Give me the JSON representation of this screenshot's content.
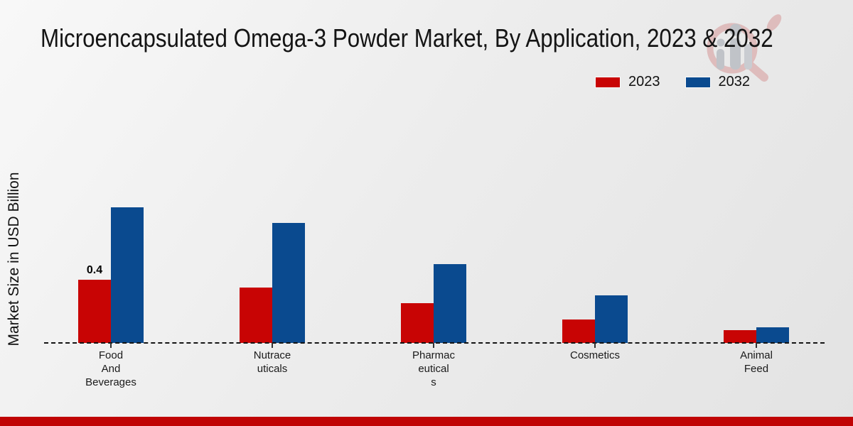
{
  "title": "Microencapsulated Omega-3 Powder Market, By Application, 2023 & 2032",
  "y_axis_label": "Market Size in USD Billion",
  "footer": {
    "color": "#c00404"
  },
  "watermark_icon": "magnifier-bar-chart-logo",
  "legend": {
    "items": [
      {
        "label": "2023",
        "color": "#c80404"
      },
      {
        "label": "2032",
        "color": "#0a4a8f"
      }
    ]
  },
  "chart_data": {
    "type": "bar",
    "title": "Microencapsulated Omega-3 Powder Market, By Application, 2023 & 2032",
    "categories": [
      "Food And Beverages",
      "Nutraceuticals",
      "Pharmaceuticals",
      "Cosmetics",
      "Animal Feed"
    ],
    "category_label_lines": [
      [
        "Food",
        "And",
        "Beverages"
      ],
      [
        "Nutrace",
        "uticals"
      ],
      [
        "Pharmac",
        "eutical",
        "s"
      ],
      [
        "Cosmetics"
      ],
      [
        "Animal",
        "Feed"
      ]
    ],
    "series": [
      {
        "name": "2023",
        "color": "#c80404",
        "values": [
          0.4,
          0.35,
          0.25,
          0.15,
          0.08
        ]
      },
      {
        "name": "2032",
        "color": "#0a4a8f",
        "values": [
          0.86,
          0.76,
          0.5,
          0.3,
          0.1
        ]
      }
    ],
    "data_labels": [
      {
        "series": "2023",
        "category": "Food And Beverages",
        "text": "0.4"
      }
    ],
    "xlabel": "",
    "ylabel": "Market Size in USD Billion",
    "ylim": [
      0,
      1
    ],
    "grid": false,
    "legend_position": "top-right",
    "baseline_style": "dashed"
  }
}
